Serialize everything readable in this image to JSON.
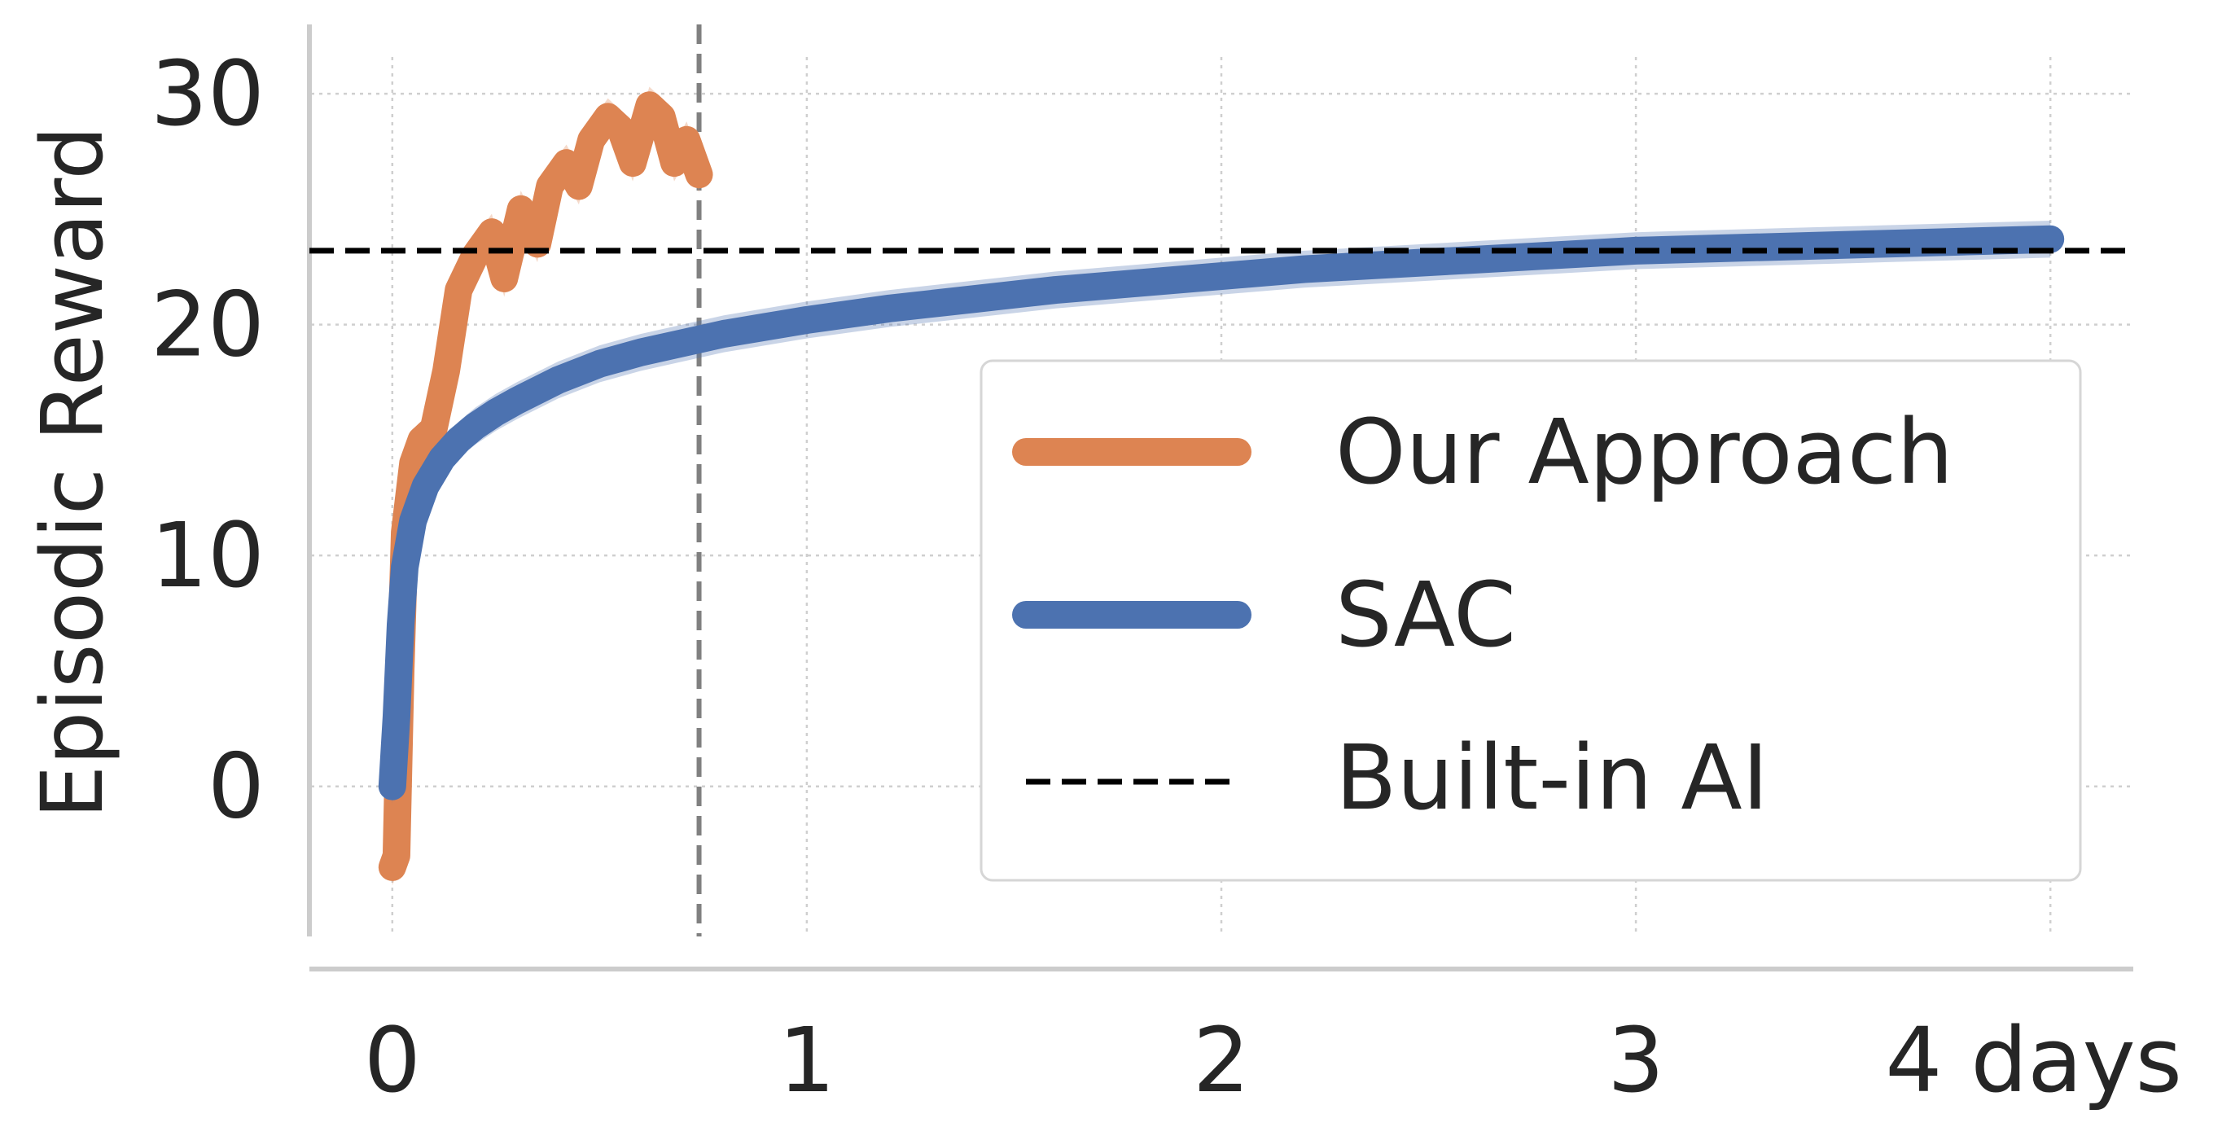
{
  "chart_data": {
    "type": "line",
    "title": "",
    "xlabel": "",
    "ylabel": "Episodic Reward",
    "xlim": [
      -0.2,
      4.2
    ],
    "ylim": [
      -6.5,
      33
    ],
    "x_ticks": [
      {
        "value": 0,
        "label": "0"
      },
      {
        "value": 1,
        "label": "1"
      },
      {
        "value": 2,
        "label": "2"
      },
      {
        "value": 3,
        "label": "3"
      },
      {
        "value": 4,
        "label": "4 days"
      }
    ],
    "y_ticks": [
      {
        "value": 0,
        "label": "0"
      },
      {
        "value": 10,
        "label": "10"
      },
      {
        "value": 20,
        "label": "20"
      },
      {
        "value": 30,
        "label": "30"
      }
    ],
    "grid": true,
    "legend_position": "right",
    "vertical_marker": {
      "x": 0.74,
      "style": "dashed",
      "color": "#808080"
    },
    "series": [
      {
        "name": "Our Approach",
        "color": "#DD8452",
        "x": [
          0.0,
          0.01,
          0.02,
          0.03,
          0.05,
          0.07,
          0.1,
          0.13,
          0.16,
          0.2,
          0.24,
          0.27,
          0.31,
          0.35,
          0.38,
          0.42,
          0.45,
          0.48,
          0.52,
          0.55,
          0.58,
          0.62,
          0.65,
          0.68,
          0.71,
          0.74
        ],
        "y": [
          -3.5,
          -3.0,
          5.0,
          11.0,
          14.0,
          15.0,
          15.5,
          18.0,
          21.5,
          23.0,
          24.0,
          22.0,
          25.0,
          23.5,
          26.0,
          27.0,
          26.0,
          28.0,
          29.0,
          28.5,
          27.0,
          29.5,
          29.0,
          27.0,
          28.0,
          26.5
        ]
      },
      {
        "name": "SAC",
        "color": "#4C72B0",
        "x": [
          0.0,
          0.01,
          0.02,
          0.03,
          0.05,
          0.08,
          0.12,
          0.16,
          0.2,
          0.25,
          0.3,
          0.4,
          0.5,
          0.6,
          0.7,
          0.8,
          0.9,
          1.0,
          1.2,
          1.4,
          1.6,
          1.8,
          2.0,
          2.2,
          2.4,
          2.6,
          2.8,
          3.0,
          3.2,
          3.4,
          3.6,
          3.8,
          4.0
        ],
        "y": [
          0.0,
          3.0,
          7.0,
          9.5,
          11.5,
          13.0,
          14.2,
          15.0,
          15.6,
          16.2,
          16.7,
          17.6,
          18.3,
          18.8,
          19.2,
          19.6,
          19.9,
          20.2,
          20.7,
          21.1,
          21.5,
          21.8,
          22.1,
          22.4,
          22.6,
          22.8,
          23.0,
          23.2,
          23.3,
          23.4,
          23.5,
          23.6,
          23.7
        ]
      },
      {
        "name": "Built-in AI",
        "color": "#000000",
        "style": "dashed",
        "y_constant": 23.2
      }
    ]
  }
}
